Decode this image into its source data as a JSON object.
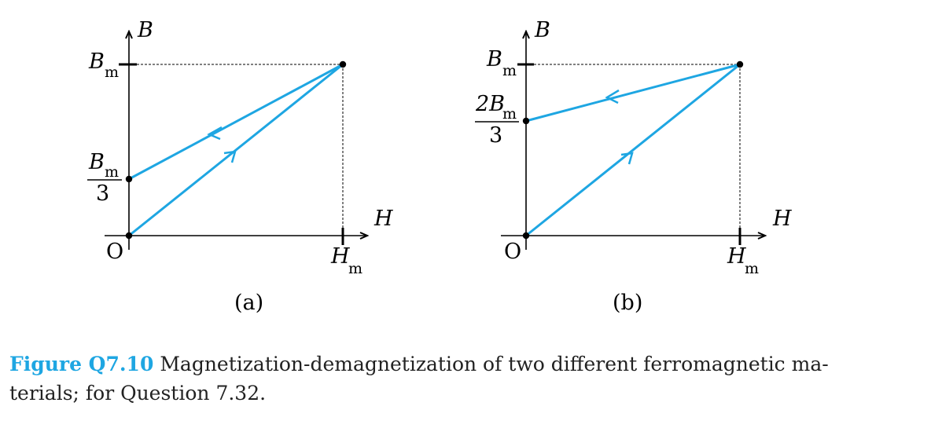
{
  "diagram_a": {
    "sub_label": "(a)",
    "axis_x": "H",
    "axis_y": "B",
    "origin": "O",
    "hm_main": "H",
    "hm_sub": "m",
    "bm_main": "B",
    "bm_sub": "m",
    "remanence_num_main": "B",
    "remanence_num_sub": "m",
    "remanence_den": "3",
    "remanence_fraction": "1/3",
    "curve_color": "#1ea6e2"
  },
  "diagram_b": {
    "sub_label": "(b)",
    "axis_x": "H",
    "axis_y": "B",
    "origin": "O",
    "hm_main": "H",
    "hm_sub": "m",
    "bm_main": "B",
    "bm_sub": "m",
    "remanence_num_main": "2B",
    "remanence_num_sub": "m",
    "remanence_den": "3",
    "remanence_fraction": "2/3",
    "curve_color": "#1ea6e2"
  },
  "caption": {
    "figure_number": "Figure Q7.10",
    "text": "Magnetization-demagnetization of two different ferromagnetic ma-terials; for Question 7.32.",
    "line1": "Magnetization-demagnetization of two different ferromagnetic ma-",
    "line2": "terials; for Question 7.32."
  }
}
